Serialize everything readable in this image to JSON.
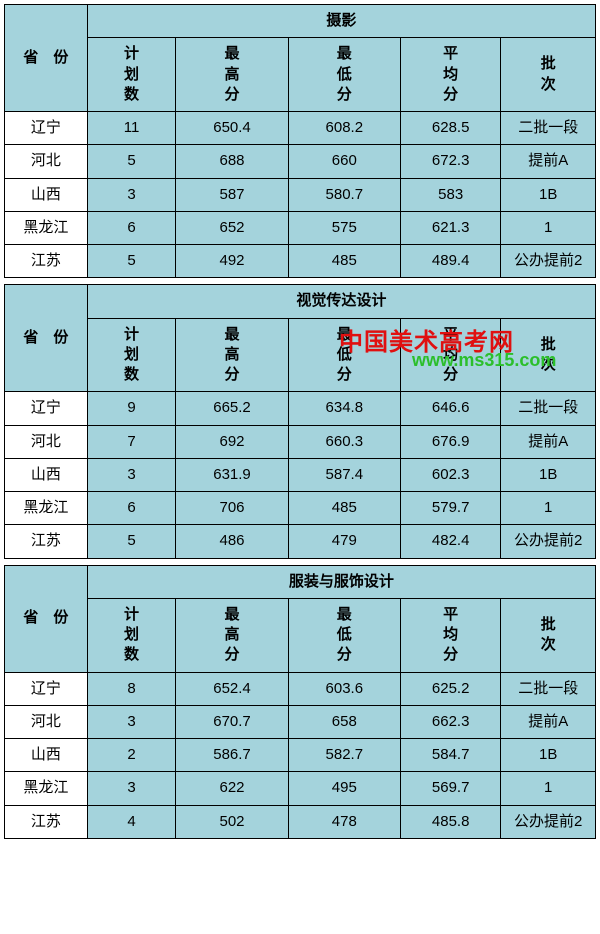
{
  "colors": {
    "header_bg": "#a4d3dc",
    "cell_bg": "#a4d3dc",
    "border": "#000000",
    "row_label_bg": "#ffffff"
  },
  "province_header": "省　份",
  "subheaders": {
    "plan": "计\n划\n数",
    "max": "最\n高\n分",
    "min": "最\n低\n分",
    "avg": "平\n均\n分",
    "batch": "批\n次"
  },
  "watermark": {
    "red": "中国美术高考网",
    "green": "www.ms315.com"
  },
  "tables": [
    {
      "title": "摄影",
      "rows": [
        {
          "prov": "辽宁",
          "plan": "11",
          "max": "650.4",
          "min": "608.2",
          "avg": "628.5",
          "batch": "二批一段"
        },
        {
          "prov": "河北",
          "plan": "5",
          "max": "688",
          "min": "660",
          "avg": "672.3",
          "batch": "提前A"
        },
        {
          "prov": "山西",
          "plan": "3",
          "max": "587",
          "min": "580.7",
          "avg": "583",
          "batch": "1B"
        },
        {
          "prov": "黑龙江",
          "plan": "6",
          "max": "652",
          "min": "575",
          "avg": "621.3",
          "batch": "1"
        },
        {
          "prov": "江苏",
          "plan": "5",
          "max": "492",
          "min": "485",
          "avg": "489.4",
          "batch": "公办提前2"
        }
      ]
    },
    {
      "title": "视觉传达设计",
      "rows": [
        {
          "prov": "辽宁",
          "plan": "9",
          "max": "665.2",
          "min": "634.8",
          "avg": "646.6",
          "batch": "二批一段"
        },
        {
          "prov": "河北",
          "plan": "7",
          "max": "692",
          "min": "660.3",
          "avg": "676.9",
          "batch": "提前A"
        },
        {
          "prov": "山西",
          "plan": "3",
          "max": "631.9",
          "min": "587.4",
          "avg": "602.3",
          "batch": "1B"
        },
        {
          "prov": "黑龙江",
          "plan": "6",
          "max": "706",
          "min": "485",
          "avg": "579.7",
          "batch": "1"
        },
        {
          "prov": "江苏",
          "plan": "5",
          "max": "486",
          "min": "479",
          "avg": "482.4",
          "batch": "公办提前2"
        }
      ]
    },
    {
      "title": "服装与服饰设计",
      "rows": [
        {
          "prov": "辽宁",
          "plan": "8",
          "max": "652.4",
          "min": "603.6",
          "avg": "625.2",
          "batch": "二批一段"
        },
        {
          "prov": "河北",
          "plan": "3",
          "max": "670.7",
          "min": "658",
          "avg": "662.3",
          "batch": "提前A"
        },
        {
          "prov": "山西",
          "plan": "2",
          "max": "586.7",
          "min": "582.7",
          "avg": "584.7",
          "batch": "1B"
        },
        {
          "prov": "黑龙江",
          "plan": "3",
          "max": "622",
          "min": "495",
          "avg": "569.7",
          "batch": "1"
        },
        {
          "prov": "江苏",
          "plan": "4",
          "max": "502",
          "min": "478",
          "avg": "485.8",
          "batch": "公办提前2"
        }
      ]
    }
  ],
  "col_widths": {
    "prov": "14%",
    "plan": "15%",
    "max": "19%",
    "min": "19%",
    "avg": "17%",
    "batch": "16%"
  }
}
